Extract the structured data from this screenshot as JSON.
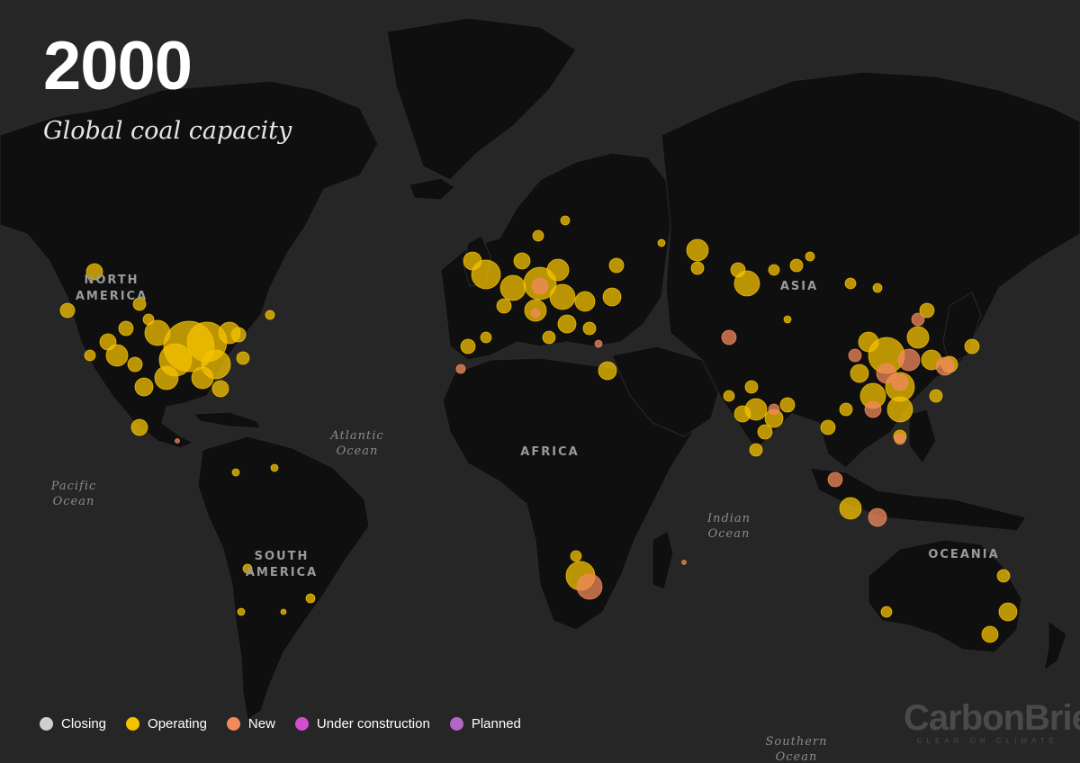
{
  "header": {
    "year": "2000",
    "subtitle": "Global coal capacity"
  },
  "labels": {
    "north_america": [
      "NORTH",
      "AMERICA"
    ],
    "south_america": [
      "SOUTH",
      "AMERICA"
    ],
    "africa": "AFRICA",
    "asia": "ASIA",
    "oceania": "OCEANIA",
    "atlantic": [
      "Atlantic",
      "Ocean"
    ],
    "pacific": [
      "Pacific",
      "Ocean"
    ],
    "indian": [
      "Indian",
      "Ocean"
    ],
    "southern": [
      "Southern",
      "Ocean"
    ]
  },
  "legend": {
    "items": [
      {
        "label": "Closing",
        "color": "#cfcfcf"
      },
      {
        "label": "Operating",
        "color": "#f5c200"
      },
      {
        "label": "New",
        "color": "#f28a5c"
      },
      {
        "label": "Under construction",
        "color": "#d04fd0"
      },
      {
        "label": "Planned",
        "color": "#b565c9"
      }
    ]
  },
  "brand": {
    "name": "CarbonBrief",
    "tagline": "CLEAR ON CLIMATE"
  },
  "colors": {
    "background": "#262626",
    "land": "#0f0f0f",
    "operating": "#f5c200",
    "new": "#f28a5c"
  }
}
